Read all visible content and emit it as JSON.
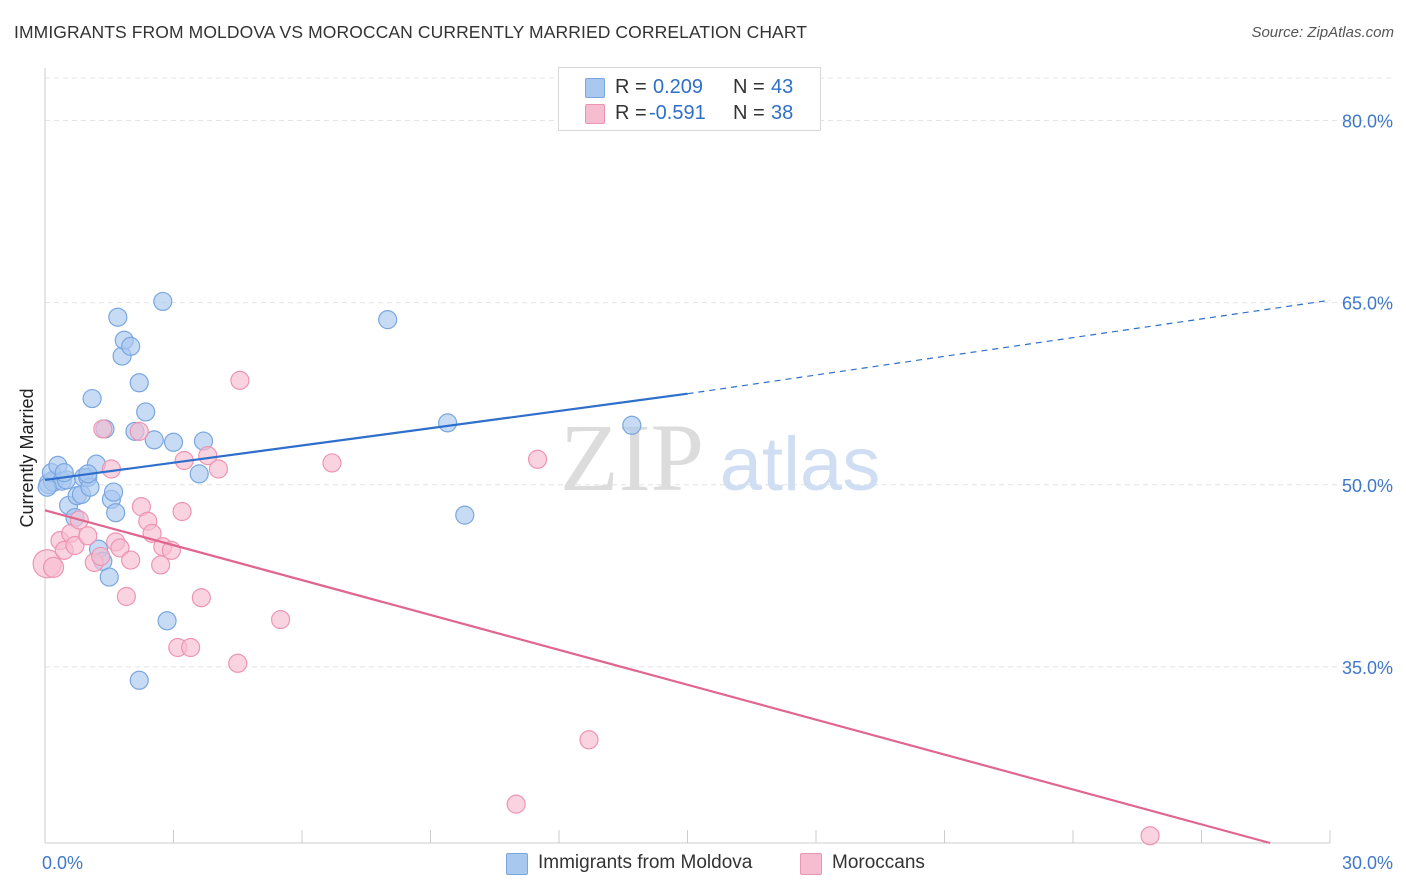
{
  "title": "IMMIGRANTS FROM MOLDOVA VS MOROCCAN CURRENTLY MARRIED CORRELATION CHART",
  "source": "Source: ZipAtlas.com",
  "watermark": {
    "part1": "ZIP",
    "part2": "atlas"
  },
  "legend": {
    "r_label": "R =",
    "n_label": "N =",
    "rows": [
      {
        "name": "Immigrants from Moldova",
        "r": "0.209",
        "n": "43",
        "color": "#a9c8ef",
        "stroke": "#7aa7df"
      },
      {
        "name": "Moroccans",
        "r": "-0.591",
        "n": "38",
        "color": "#f6bdd0",
        "stroke": "#ee94b3"
      }
    ]
  },
  "bottom_legend": {
    "items": [
      "Immigrants from Moldova",
      "Moroccans"
    ]
  },
  "chart_data": {
    "type": "scatter",
    "title": "IMMIGRANTS FROM MOLDOVA VS MOROCCAN CURRENTLY MARRIED CORRELATION CHART",
    "xlabel": "",
    "ylabel": "Currently Married",
    "xlim": [
      0,
      30
    ],
    "ylim": [
      20.5,
      83.5
    ],
    "x_tick_labels": [
      "0.0%",
      "30.0%"
    ],
    "y_ticks": [
      35,
      50,
      65,
      80
    ],
    "y_tick_labels": [
      "35.0%",
      "50.0%",
      "65.0%",
      "80.0%"
    ],
    "grid": true,
    "series": [
      {
        "name": "Immigrants from Moldova",
        "color": "#a9c8ef",
        "stroke": "#7aa7df",
        "line_color": "#2e6fcc",
        "trend": {
          "x0": 0.0,
          "y0": 50.4,
          "x1": 15.0,
          "y1": 57.5,
          "dash_to_x": 30.0,
          "dash_to_y": 65.2
        },
        "points": [
          [
            0.1,
            50.1,
            10
          ],
          [
            0.2,
            50.3,
            10
          ],
          [
            0.15,
            51.0,
            9
          ],
          [
            0.3,
            51.6,
            9
          ],
          [
            0.4,
            50.3,
            9
          ],
          [
            0.5,
            50.4,
            9
          ],
          [
            0.55,
            48.3,
            9
          ],
          [
            0.7,
            47.3,
            9
          ],
          [
            0.75,
            49.1,
            9
          ],
          [
            0.85,
            49.2,
            9
          ],
          [
            0.9,
            50.6,
            9
          ],
          [
            1.0,
            50.6,
            9
          ],
          [
            1.05,
            49.8,
            9
          ],
          [
            1.1,
            57.1,
            9
          ],
          [
            1.2,
            51.7,
            9
          ],
          [
            1.25,
            44.7,
            9
          ],
          [
            1.35,
            43.7,
            9
          ],
          [
            1.4,
            54.6,
            9
          ],
          [
            1.5,
            42.4,
            9
          ],
          [
            1.55,
            48.8,
            9
          ],
          [
            1.6,
            49.4,
            9
          ],
          [
            1.65,
            47.7,
            9
          ],
          [
            1.7,
            63.8,
            9
          ],
          [
            1.8,
            60.6,
            9
          ],
          [
            1.85,
            61.9,
            9
          ],
          [
            2.0,
            61.4,
            9
          ],
          [
            2.1,
            54.4,
            9
          ],
          [
            2.2,
            58.4,
            9
          ],
          [
            2.35,
            56.0,
            9
          ],
          [
            2.55,
            53.7,
            9
          ],
          [
            2.75,
            65.1,
            9
          ],
          [
            2.85,
            38.8,
            9
          ],
          [
            3.0,
            53.5,
            9
          ],
          [
            2.2,
            33.9,
            9
          ],
          [
            3.6,
            50.9,
            9
          ],
          [
            3.7,
            53.6,
            9
          ],
          [
            8.0,
            63.6,
            9
          ],
          [
            9.4,
            55.1,
            9
          ],
          [
            9.8,
            47.5,
            9
          ],
          [
            13.7,
            54.9,
            9
          ],
          [
            0.05,
            49.8,
            9
          ],
          [
            0.45,
            51.0,
            9
          ],
          [
            1.0,
            50.9,
            9
          ]
        ]
      },
      {
        "name": "Moroccans",
        "color": "#f6bdd0",
        "stroke": "#ee94b3",
        "line_color": "#e0668e",
        "trend": {
          "x0": 0.0,
          "y0": 47.9,
          "x1": 28.6,
          "y1": 20.5
        },
        "points": [
          [
            0.05,
            43.5,
            14
          ],
          [
            0.2,
            43.2,
            10
          ],
          [
            0.35,
            45.4,
            9
          ],
          [
            0.45,
            44.6,
            9
          ],
          [
            0.6,
            46.0,
            9
          ],
          [
            0.7,
            45.0,
            9
          ],
          [
            0.8,
            47.1,
            9
          ],
          [
            1.0,
            45.8,
            9
          ],
          [
            1.15,
            43.6,
            9
          ],
          [
            1.3,
            44.1,
            9
          ],
          [
            1.35,
            54.6,
            9
          ],
          [
            1.55,
            51.3,
            9
          ],
          [
            1.65,
            45.3,
            9
          ],
          [
            1.75,
            44.8,
            9
          ],
          [
            1.9,
            40.8,
            9
          ],
          [
            2.0,
            43.8,
            9
          ],
          [
            2.2,
            54.4,
            9
          ],
          [
            2.25,
            48.2,
            9
          ],
          [
            2.4,
            47.0,
            9
          ],
          [
            2.5,
            46.0,
            9
          ],
          [
            2.7,
            43.4,
            9
          ],
          [
            2.75,
            44.9,
            9
          ],
          [
            2.95,
            44.6,
            9
          ],
          [
            3.1,
            36.6,
            9
          ],
          [
            3.2,
            47.8,
            9
          ],
          [
            3.25,
            52.0,
            9
          ],
          [
            3.4,
            36.6,
            9
          ],
          [
            3.65,
            40.7,
            9
          ],
          [
            3.8,
            52.4,
            9
          ],
          [
            4.05,
            51.3,
            9
          ],
          [
            4.5,
            35.3,
            9
          ],
          [
            4.55,
            58.6,
            9
          ],
          [
            5.5,
            38.9,
            9
          ],
          [
            6.7,
            51.8,
            9
          ],
          [
            11.0,
            23.7,
            9
          ],
          [
            11.5,
            52.1,
            9
          ],
          [
            12.7,
            29.0,
            9
          ],
          [
            25.8,
            21.1,
            9
          ]
        ]
      }
    ]
  }
}
